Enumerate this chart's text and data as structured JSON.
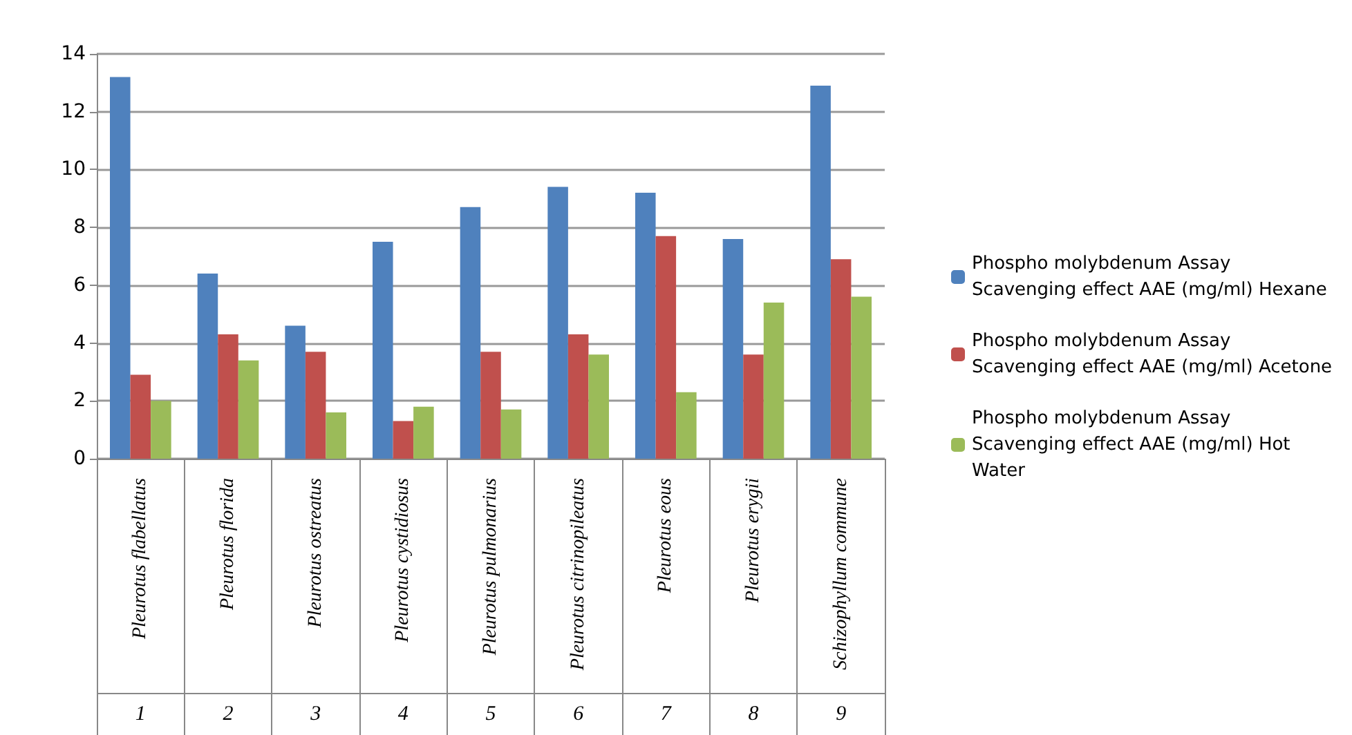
{
  "chart_data": {
    "type": "bar",
    "categories": [
      "Pleurotus flabellatus",
      "Pleurotus florida",
      "Pleurotus ostreatus",
      "Pleurotus cystidiosus",
      "Pleurotus pulmonarius",
      "Pleurotus citrinopileatus",
      "Pleurotus eous",
      "Pleurotus erygii",
      "Schizophyllum commune"
    ],
    "series": [
      {
        "name": "Phospho molybdenum Assay Scavenging effect AAE (mg/ml) Hexane",
        "color": "#4f81bd",
        "values": [
          13.2,
          6.4,
          4.6,
          7.5,
          8.7,
          9.4,
          9.2,
          7.6,
          12.9
        ]
      },
      {
        "name": "Phospho molybdenum Assay Scavenging effect AAE (mg/ml) Acetone",
        "color": "#c0504d",
        "values": [
          2.9,
          4.3,
          3.7,
          1.3,
          3.7,
          4.3,
          7.7,
          3.6,
          6.9
        ]
      },
      {
        "name": "Phospho molybdenum Assay Scavenging effect AAE (mg/ml) Hot Water",
        "color": "#9bbb59",
        "values": [
          2.0,
          3.4,
          1.6,
          1.8,
          1.7,
          3.6,
          2.3,
          5.4,
          5.6
        ]
      }
    ],
    "annotations": [
      "1",
      "2",
      "3",
      "4",
      "5",
      "6",
      "7",
      "8",
      "9"
    ],
    "ylim": [
      0,
      14
    ],
    "yticks": [
      0,
      2,
      4,
      6,
      8,
      10,
      12,
      14
    ],
    "grid": "y",
    "legend": "right"
  }
}
